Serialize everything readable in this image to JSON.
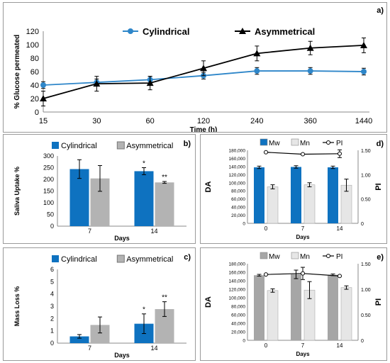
{
  "chart_data": [
    {
      "panel": "a)",
      "type": "line",
      "x_categories": [
        "15",
        "30",
        "60",
        "120",
        "240",
        "360",
        "1440"
      ],
      "xlabel": "Time (h)",
      "ylabel": "% Glucose permeated",
      "ylim": [
        0,
        120
      ],
      "yticks": [
        "0",
        "20",
        "40",
        "60",
        "80",
        "100",
        "120"
      ],
      "legend_position": "top-center",
      "grid": false,
      "series": [
        {
          "name": "Cylindrical",
          "color": "#2e86c9",
          "marker": "circle",
          "values": [
            40,
            44,
            48,
            54,
            61,
            61,
            60
          ],
          "errors": [
            5,
            5,
            5,
            5,
            5,
            5,
            5
          ]
        },
        {
          "name": "Asymmetrical",
          "color": "#000000",
          "marker": "triangle",
          "values": [
            20,
            42,
            43,
            65,
            87,
            95,
            99
          ],
          "errors": [
            11,
            11,
            10,
            11,
            11,
            10,
            11
          ]
        }
      ]
    },
    {
      "panel": "b)",
      "type": "bar",
      "categories": [
        "7",
        "14"
      ],
      "xlabel": "Days",
      "ylabel": "Saliva Uptake %",
      "ylim": [
        0,
        300
      ],
      "yticks": [
        "0",
        "50",
        "100",
        "150",
        "200",
        "250",
        "300"
      ],
      "legend_position": "top-left",
      "series": [
        {
          "name": "Cylindrical",
          "color": "#0e72c0",
          "values": [
            244,
            235
          ],
          "errors": [
            40,
            15
          ],
          "marks": [
            "",
            "*"
          ]
        },
        {
          "name": "Asymmetrical",
          "color": "#b3b3b3",
          "values": [
            204,
            187
          ],
          "errors": [
            55,
            4
          ],
          "marks": [
            "",
            "**"
          ]
        }
      ]
    },
    {
      "panel": "c)",
      "type": "bar",
      "categories": [
        "7",
        "14"
      ],
      "xlabel": "Days",
      "ylabel": "Mass Loss %",
      "ylim": [
        0,
        6
      ],
      "yticks": [
        "0",
        "1",
        "2",
        "3",
        "4",
        "5",
        "6"
      ],
      "legend_position": "top-left",
      "series": [
        {
          "name": "Cylindrical",
          "color": "#0e72c0",
          "values": [
            0.55,
            1.58
          ],
          "errors": [
            0.15,
            0.8
          ],
          "marks": [
            "",
            "*"
          ]
        },
        {
          "name": "Asymmetrical",
          "color": "#b3b3b3",
          "values": [
            1.48,
            2.77
          ],
          "errors": [
            0.65,
            0.6
          ],
          "marks": [
            "",
            "**"
          ]
        }
      ]
    },
    {
      "panel": "d)",
      "type": "bar",
      "categories": [
        "0",
        "7",
        "14"
      ],
      "xlabel": "Days",
      "ylabel": "DA",
      "ylabel_right": "PI",
      "ylim": [
        0,
        180000
      ],
      "yticks": [
        "0",
        "20,000",
        "40,000",
        "60,000",
        "80,000",
        "100,000",
        "120,000",
        "140,000",
        "160,000",
        "180,000"
      ],
      "ylim_right": [
        0,
        1.5
      ],
      "yticks_right": [
        "0",
        "0.50",
        "1.00",
        "1.50"
      ],
      "legend_position": "top-left",
      "series": [
        {
          "name": "Mw",
          "color": "#0e72c0",
          "values": [
            138000,
            139000,
            138000
          ],
          "errors": [
            3000,
            3000,
            3000
          ]
        },
        {
          "name": "Mn",
          "color": "#e6e6e6",
          "values": [
            90000,
            95000,
            94000
          ],
          "errors": [
            5000,
            5000,
            15000
          ]
        },
        {
          "name": "PI",
          "color": "#000000",
          "type": "line",
          "axis": "right",
          "values": [
            1.46,
            1.42,
            1.43
          ],
          "errors": [
            0,
            0,
            0.08
          ]
        }
      ]
    },
    {
      "panel": "e)",
      "type": "bar",
      "categories": [
        "0",
        "7",
        "14"
      ],
      "xlabel": "Days",
      "ylabel": "DA",
      "ylabel_right": "PI",
      "ylim": [
        0,
        180000
      ],
      "yticks": [
        "0",
        "20,000",
        "40,000",
        "60,000",
        "80,000",
        "100,000",
        "120,000",
        "140,000",
        "160,000",
        "180,000"
      ],
      "ylim_right": [
        0,
        1.5
      ],
      "yticks_right": [
        "0",
        "0.50",
        "1.00",
        "1.50"
      ],
      "legend_position": "top-left",
      "series": [
        {
          "name": "Mw",
          "color": "#a6a6a6",
          "values": [
            153000,
            155000,
            154000
          ],
          "errors": [
            2000,
            10000,
            2000
          ]
        },
        {
          "name": "Mn",
          "color": "#e6e6e6",
          "values": [
            117000,
            118000,
            124000
          ],
          "errors": [
            4000,
            20000,
            4000
          ]
        },
        {
          "name": "PI",
          "color": "#000000",
          "type": "line",
          "axis": "right",
          "values": [
            1.29,
            1.31,
            1.26
          ],
          "errors": [
            0,
            0.12,
            0
          ]
        }
      ]
    }
  ]
}
